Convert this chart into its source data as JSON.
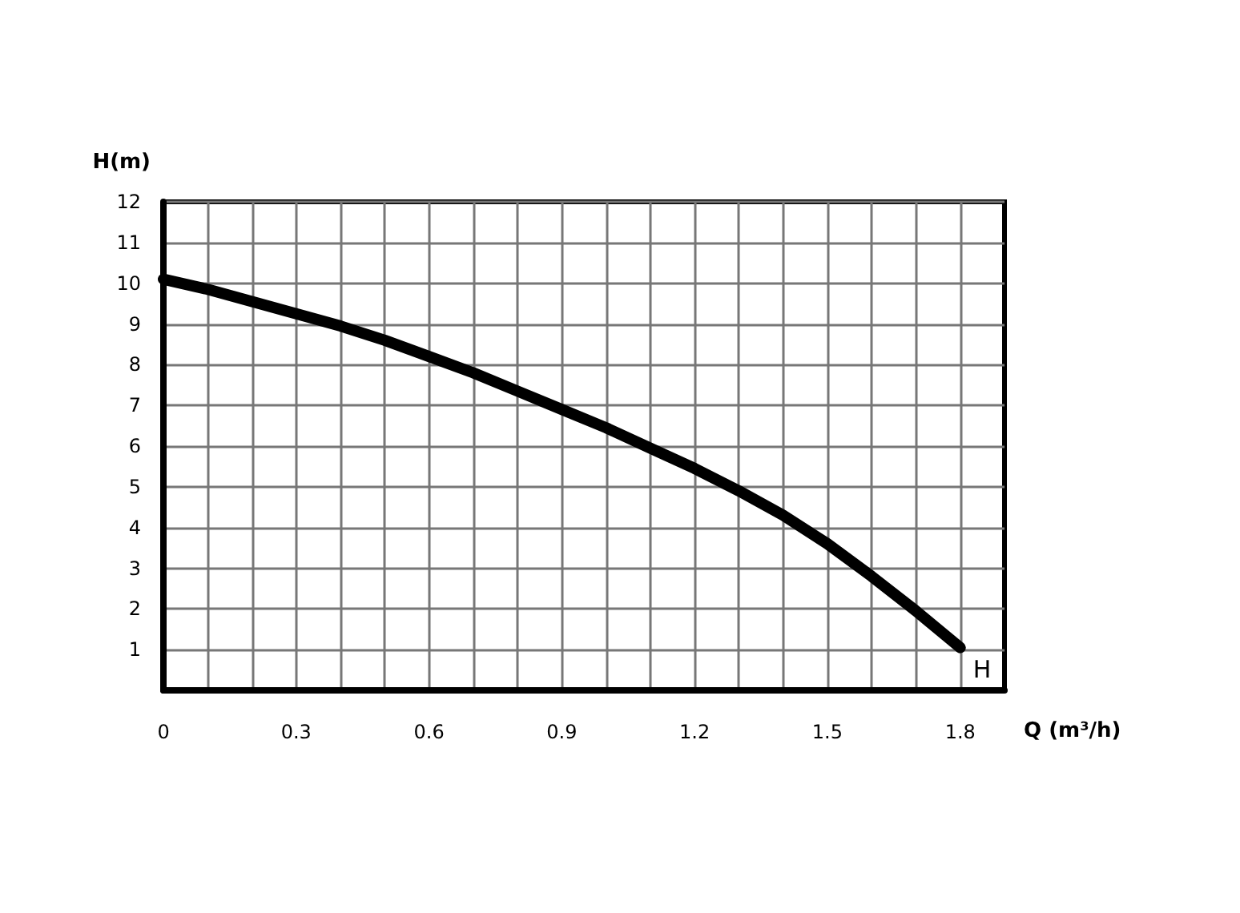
{
  "chart_data": {
    "type": "line",
    "xlabel": "Q (m³/h)",
    "ylabel": "H(m)",
    "x": [
      0,
      0.1,
      0.2,
      0.3,
      0.4,
      0.5,
      0.6,
      0.7,
      0.8,
      0.9,
      1.0,
      1.1,
      1.2,
      1.3,
      1.4,
      1.5,
      1.6,
      1.7,
      1.8
    ],
    "series": [
      {
        "name": "H",
        "color": "#000000",
        "values": [
          10.1,
          9.85,
          9.55,
          9.25,
          8.95,
          8.6,
          8.2,
          7.8,
          7.35,
          6.9,
          6.45,
          5.95,
          5.45,
          4.9,
          4.3,
          3.6,
          2.8,
          1.95,
          1.05
        ]
      }
    ],
    "xlim": [
      0,
      1.9
    ],
    "xticks": [
      0,
      {
        "value": 0.1,
        "label": null
      },
      {
        "value": 0.2,
        "label": null
      },
      0.3,
      {
        "value": 0.4,
        "label": null
      },
      {
        "value": 0.5,
        "label": null
      },
      0.6,
      {
        "value": 0.7,
        "label": null
      },
      {
        "value": 0.8,
        "label": null
      },
      0.9,
      {
        "value": 1.0,
        "label": null
      },
      {
        "value": 1.1,
        "label": null
      },
      1.2,
      {
        "value": 1.3,
        "label": null
      },
      {
        "value": 1.4,
        "label": null
      },
      1.5,
      {
        "value": 1.6,
        "label": null
      },
      {
        "value": 1.7,
        "label": null
      },
      1.8
    ],
    "ylim": [
      0,
      12
    ],
    "yticks": [
      {
        "value": 0,
        "label": null
      },
      1,
      2,
      3,
      4,
      5,
      6,
      7,
      8,
      9,
      10,
      11,
      12
    ],
    "grid": true,
    "legend": false,
    "marker": "none",
    "line_style": "solid"
  }
}
